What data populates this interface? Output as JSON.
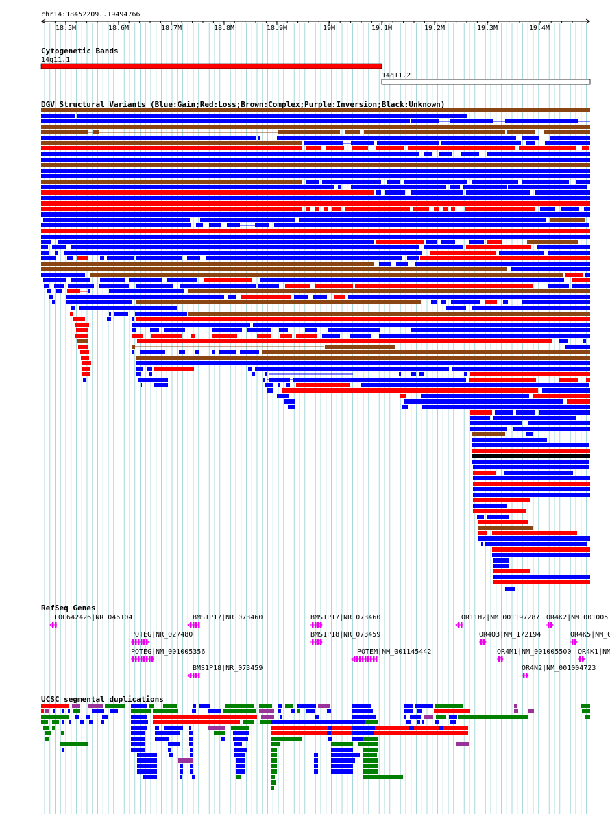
{
  "ruler": {
    "coords": "chr14:18452209..19494766",
    "ticks": [
      "18.5M",
      "18.6M",
      "18.7M",
      "18.8M",
      "18.9M",
      "19M",
      "19.1M",
      "19.2M",
      "19.3M",
      "19.4M"
    ]
  },
  "cytoband": {
    "title": "Cytogenetic Bands",
    "bands": [
      {
        "name": "14q11.1",
        "color": "#ff0000"
      },
      {
        "name": "14q11.2",
        "color": "#ffffff"
      }
    ]
  },
  "dgv": {
    "title": "DGV Structural Variants (Blue:Gain;Red:Loss;Brown:Complex;Purple:Inversion;Black:Unknown)",
    "colors": {
      "gain": "#0000ff",
      "loss": "#ff0000",
      "complex": "#8b4513",
      "inversion": "#993399",
      "unknown": "#000000"
    }
  },
  "refseq": {
    "title": "RefSeq Genes",
    "color": "#ee00ee",
    "genes": [
      "LOC642426|NR_046104",
      "BMS1P17|NR_073460",
      "POTEG|NR_027480",
      "POTEG|NM_001005356",
      "BMS1P18|NR_073459",
      "BMS1P17|NR_073460",
      "BMS1P18|NR_073459",
      "POTEM|NM_001145442",
      "OR11H2|NM_001197287",
      "OR4Q3|NM_172194",
      "OR4M1|NM_001005500",
      "OR4N2|NM_001004723",
      "OR4K2|NM_001005",
      "OR4K5|NM_0",
      "OR4K1|NM"
    ]
  },
  "segdup": {
    "title": "UCSC segmental duplications",
    "colors": {
      "green": "#008000",
      "blue": "#0000ff",
      "red": "#ff0000",
      "purple": "#993399"
    }
  }
}
